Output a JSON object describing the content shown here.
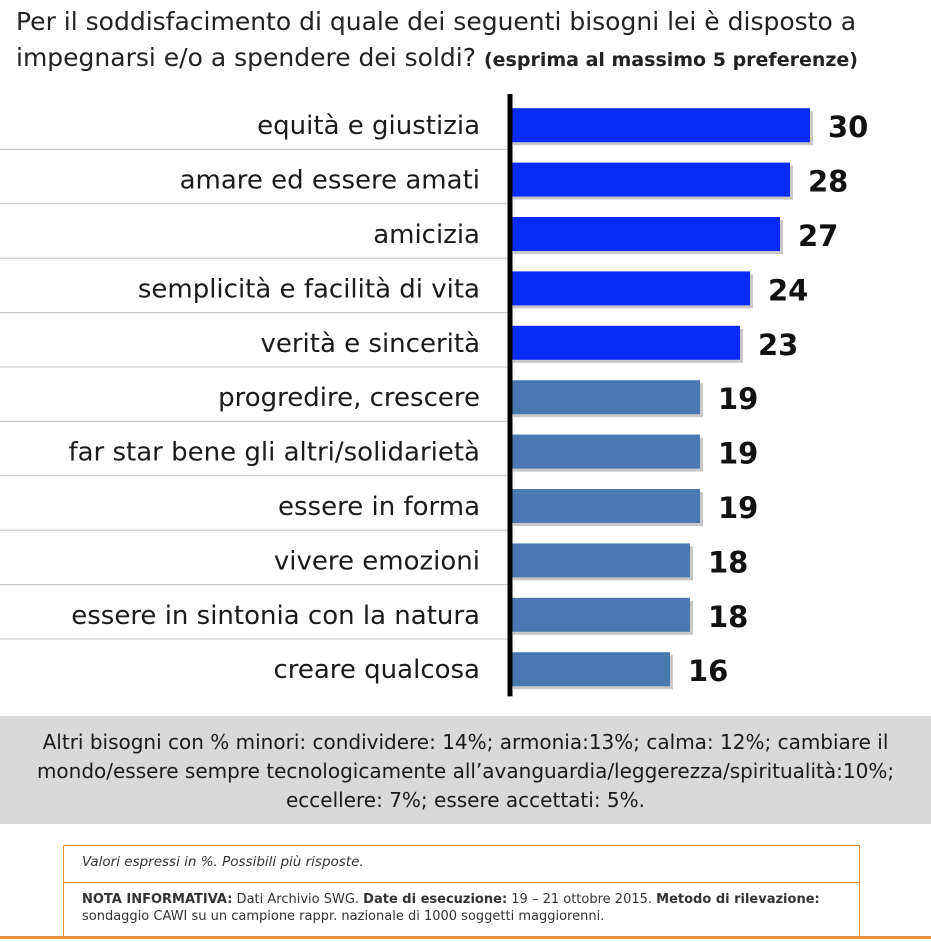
{
  "title": {
    "main": "Per il soddisfacimento di quale dei seguenti bisogni lei è disposto a impegnarsi e/o a spendere dei soldi?",
    "sub": "(esprima al massimo 5 preferenze)"
  },
  "chart_data": {
    "type": "bar",
    "orientation": "horizontal",
    "categories": [
      "equità e giustizia",
      "amare ed essere amati",
      "amicizia",
      "semplicità e facilità di vita",
      "verità e sincerità",
      "progredire, crescere",
      "far star bene gli altri/solidarietà",
      "essere in forma",
      "vivere emozioni",
      "essere in sintonia con la natura",
      "creare qualcosa"
    ],
    "values": [
      30,
      28,
      27,
      24,
      23,
      19,
      19,
      19,
      18,
      18,
      16
    ],
    "highlight_colors": [
      "#0a2af5",
      "#0a2af5",
      "#0a2af5",
      "#0a2af5",
      "#0a2af5",
      "#4a78b0",
      "#4a78b0",
      "#4a78b0",
      "#4a78b0",
      "#4a78b0",
      "#4a78b0"
    ],
    "xlim": [
      0,
      30
    ],
    "grid": false
  },
  "note": "Altri bisogni con % minori: condividere: 14%; armonia:13%; calma: 12%; cambiare il mondo/essere sempre tecnologicamente all’avanguardia/leggerezza/spiritualità:10%; eccellere: 7%; essere accettati: 5%.",
  "footer": {
    "line1": "Valori espressi in %. Possibili più risposte.",
    "nota_label": "NOTA INFORMATIVA:",
    "nota_text": " Dati Archivio SWG. ",
    "date_label": "Date di esecuzione:",
    "date_text": " 19 – 21 ottobre 2015. ",
    "metodo_label": "Metodo di rilevazione:",
    "metodo_text": " sondaggio CAWI su un campione rappr. nazionale di 1000 soggetti maggiorenni."
  }
}
